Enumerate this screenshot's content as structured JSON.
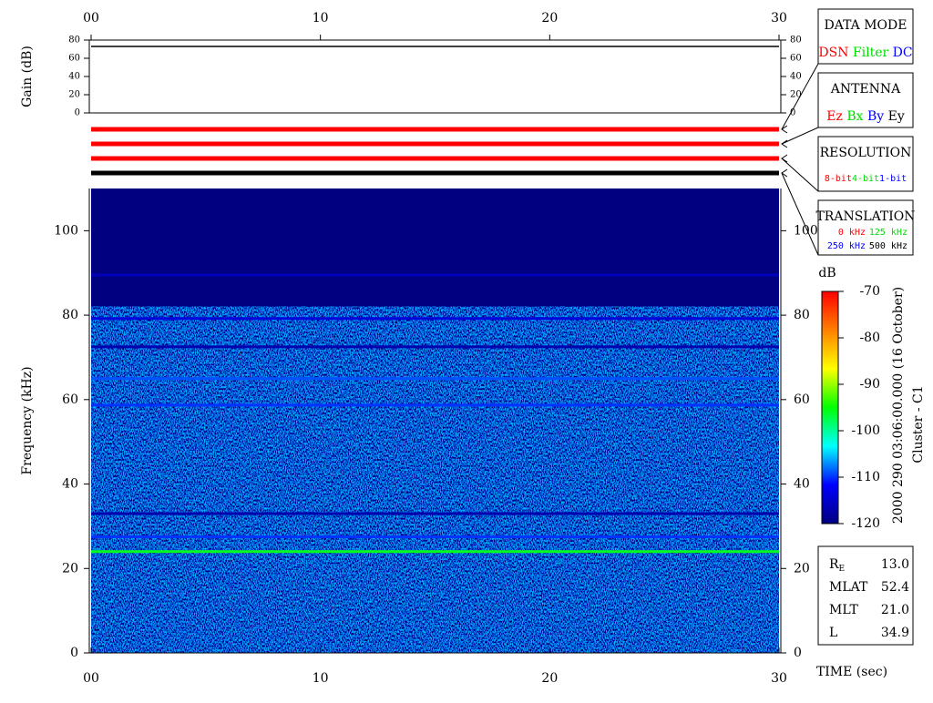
{
  "chart_data": [
    {
      "type": "line",
      "ylabel": "Gain (dB)",
      "xlim": [
        0,
        30
      ],
      "xticks": [
        {
          "value": 0,
          "label": "00"
        },
        10,
        20,
        30
      ],
      "ylim": [
        0,
        80
      ],
      "yticks": [
        0,
        20,
        40,
        60,
        80
      ],
      "series": [
        {
          "color": "#000000",
          "x": [
            0,
            30
          ],
          "values": [
            73,
            73
          ]
        }
      ]
    },
    {
      "type": "spectrogram",
      "xlabel": "TIME (sec)",
      "ylabel": "Frequency (kHz)",
      "xlim": [
        0,
        30
      ],
      "xticks": [
        {
          "value": 0,
          "label": "00"
        },
        10,
        20,
        30
      ],
      "ylim": [
        0,
        110
      ],
      "yticks": [
        0,
        20,
        40,
        60,
        80,
        100
      ],
      "noise_top": 82,
      "lines": [
        {
          "frequency": 89.5,
          "level": -116
        },
        {
          "frequency": 79.2,
          "level": -114
        },
        {
          "frequency": 72.5,
          "level": -117
        },
        {
          "frequency": 65,
          "level": -109
        },
        {
          "frequency": 58.7,
          "level": -110
        },
        {
          "frequency": 33,
          "level": -117
        },
        {
          "frequency": 27.5,
          "level": -110
        },
        {
          "frequency": 24,
          "level": -96
        }
      ],
      "colorbar": {
        "label": "dB",
        "lim": [
          -120,
          -70
        ],
        "ticks": [
          -70,
          -80,
          -90,
          -100,
          -110,
          -120
        ],
        "colors": [
          "#000080",
          "#0000ff",
          "#00ffff",
          "#00ff00",
          "#ffff00",
          "#ff8000",
          "#ff0000"
        ]
      }
    }
  ],
  "annotations": {
    "time": "2000 290 03:06:00.000 (16 October)",
    "spacecraft": "Cluster - C1"
  },
  "modes": [
    {
      "title": "DATA MODE",
      "selected": 0,
      "options": [
        {
          "label": "DSN",
          "color": "#ff0000"
        },
        {
          "label": "Filter",
          "color": "#00dd00"
        },
        {
          "label": "DC",
          "color": "#0000ff"
        }
      ]
    },
    {
      "title": "ANTENNA",
      "selected": 0,
      "options": [
        {
          "label": "Ez",
          "color": "#ff0000"
        },
        {
          "label": "Bx",
          "color": "#00dd00"
        },
        {
          "label": "By",
          "color": "#0000ff"
        },
        {
          "label": "Ey",
          "color": "#000000"
        }
      ]
    },
    {
      "title": "RESOLUTION",
      "selected": 0,
      "options": [
        {
          "label": "8-bit",
          "color": "#ff0000"
        },
        {
          "label": "4-bit",
          "color": "#00dd00"
        },
        {
          "label": "1-bit",
          "color": "#0000ff"
        }
      ]
    },
    {
      "title": "TRANSLATION",
      "selected": 3,
      "options": [
        {
          "label": "0 kHz",
          "color": "#ff0000"
        },
        {
          "label": "125 kHz",
          "color": "#00dd00"
        },
        {
          "label": "250 kHz",
          "color": "#0000ff"
        },
        {
          "label": "500 kHz",
          "color": "#000000"
        }
      ]
    }
  ],
  "position": [
    {
      "label": "R",
      "sub": "E",
      "value": "13.0"
    },
    {
      "label": "MLAT",
      "value": "52.4"
    },
    {
      "label": "MLT",
      "value": "21.0"
    },
    {
      "label": "L",
      "value": "34.9"
    }
  ]
}
